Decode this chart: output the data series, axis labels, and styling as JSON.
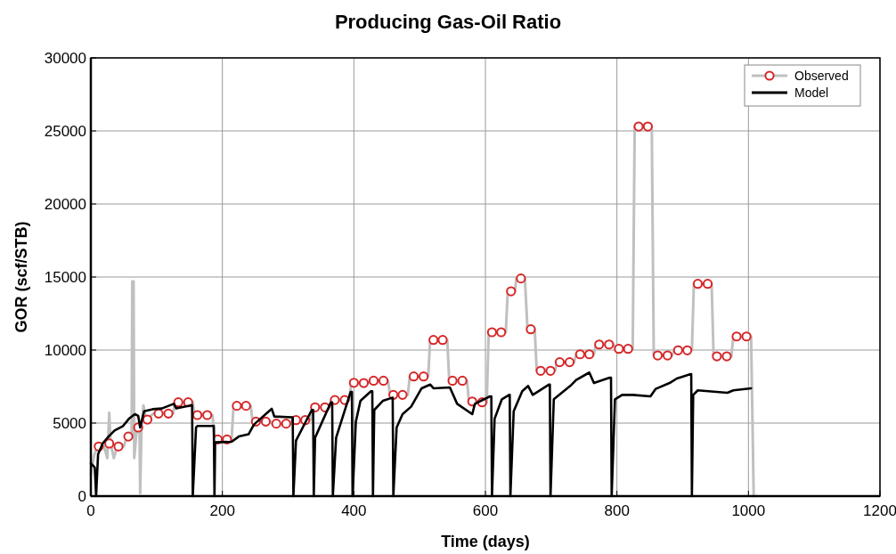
{
  "chart_data": {
    "type": "line",
    "title": "Producing Gas-Oil Ratio",
    "xlabel": "Time (days)",
    "ylabel": "GOR (scf/STB)",
    "xlim": [
      0,
      1200
    ],
    "xticks": [
      0,
      200,
      400,
      600,
      800,
      1000,
      1200
    ],
    "ylim": [
      0,
      30000
    ],
    "yticks": [
      0,
      5000,
      10000,
      15000,
      20000,
      25000,
      30000
    ],
    "grid": true,
    "legend": "top right",
    "series": [
      {
        "color": "#c0c0c0",
        "marker": "none",
        "x": [
          0,
          5,
          10,
          20,
          25,
          28,
          30,
          35,
          40,
          50,
          55,
          62,
          63,
          65,
          66,
          70,
          74,
          75,
          77,
          80,
          84,
          95,
          125,
          128,
          155,
          158,
          185,
          188,
          214,
          217,
          243,
          246,
          273,
          276,
          304,
          307,
          334,
          337,
          363,
          366,
          393,
          396,
          422,
          425,
          452,
          455,
          482,
          485,
          513,
          516,
          542,
          545,
          572,
          575,
          602,
          605,
          631,
          634,
          645,
          647,
          660,
          664,
          675,
          678,
          706,
          709,
          735,
          738,
          765,
          768,
          795,
          798,
          824,
          827,
          853,
          856,
          884,
          887,
          914,
          917,
          944,
          947,
          974,
          977,
          1004,
          1008
        ],
        "values": [
          1500,
          2800,
          3400,
          3400,
          2600,
          5700,
          3600,
          2600,
          3400,
          3400,
          4100,
          4100,
          14700,
          14700,
          2600,
          4700,
          4700,
          200,
          4700,
          6200,
          5200,
          5650,
          5650,
          6420,
          6420,
          5550,
          5550,
          3880,
          3880,
          6180,
          6180,
          5100,
          5100,
          4960,
          4960,
          5200,
          5200,
          6080,
          6080,
          6580,
          6580,
          7740,
          7740,
          7900,
          7900,
          6930,
          6930,
          8190,
          8190,
          10690,
          10690,
          7900,
          7900,
          6480,
          6420,
          11220,
          11220,
          14020,
          14020,
          14900,
          14900,
          11420,
          11420,
          8580,
          8580,
          9170,
          9170,
          9710,
          9710,
          10380,
          10380,
          10080,
          10080,
          25300,
          25300,
          9630,
          9630,
          9980,
          9980,
          14530,
          14530,
          9570,
          9570,
          10930,
          10930,
          0
        ]
      },
      {
        "type": "scatter",
        "name": "Observed",
        "color": "#d62728",
        "marker": "circle",
        "x": [
          12,
          28,
          42,
          57,
          72,
          86,
          103,
          118,
          133,
          148,
          162,
          177,
          193,
          207,
          222,
          236,
          251,
          266,
          282,
          297,
          312,
          326,
          341,
          356,
          371,
          386,
          400,
          415,
          430,
          445,
          460,
          474,
          491,
          506,
          521,
          535,
          550,
          565,
          580,
          595,
          610,
          624,
          639,
          654,
          669,
          684,
          699,
          713,
          728,
          744,
          758,
          773,
          788,
          803,
          817,
          833,
          847,
          862,
          877,
          893,
          907,
          923,
          938,
          952,
          967,
          982,
          997
        ],
        "values": [
          3400,
          3600,
          3400,
          4080,
          4700,
          5240,
          5650,
          5650,
          6420,
          6420,
          5550,
          5550,
          3880,
          3880,
          6180,
          6180,
          5100,
          5100,
          4960,
          4960,
          5200,
          5200,
          6080,
          6080,
          6580,
          6580,
          7760,
          7740,
          7900,
          7900,
          6930,
          6930,
          8190,
          8190,
          10690,
          10690,
          7900,
          7900,
          6480,
          6420,
          11220,
          11220,
          14020,
          14900,
          11420,
          8580,
          8580,
          9170,
          9170,
          9710,
          9710,
          10380,
          10380,
          10080,
          10080,
          25300,
          25300,
          9630,
          9630,
          9980,
          9980,
          14530,
          14530,
          9570,
          9570,
          10930,
          10930
        ]
      },
      {
        "name": "Model",
        "color": "#000000",
        "marker": "none",
        "x": [
          0,
          6,
          8,
          11,
          18,
          27,
          36,
          49,
          58,
          67,
          72,
          75,
          81,
          94,
          108,
          126,
          130,
          153,
          154,
          155,
          160,
          162,
          185,
          187,
          188,
          189,
          214,
          225,
          240,
          248,
          275,
          279,
          306,
          307,
          308,
          312,
          336,
          338,
          339,
          341,
          365,
          367,
          368,
          373,
          395,
          397,
          398,
          403,
          410,
          426,
          428,
          429,
          431,
          444,
          458,
          459,
          460,
          465,
          474,
          487,
          503,
          516,
          521,
          546,
          557,
          580,
          584,
          607,
          609,
          610,
          614,
          625,
          636,
          637,
          638,
          643,
          656,
          665,
          672,
          697,
          698,
          699,
          704,
          729,
          738,
          758,
          765,
          789,
          791,
          792,
          797,
          808,
          824,
          851,
          859,
          880,
          891,
          912,
          913,
          914,
          916,
          923,
          968,
          977,
          1004
        ],
        "values": [
          2250,
          1960,
          0,
          2870,
          3600,
          4080,
          4490,
          4800,
          5300,
          5610,
          5500,
          4700,
          5810,
          5950,
          6000,
          6320,
          6000,
          6220,
          6220,
          0,
          4700,
          4800,
          4800,
          4800,
          0,
          3680,
          3720,
          4080,
          4240,
          4900,
          5980,
          5450,
          5400,
          5400,
          0,
          3800,
          5900,
          5900,
          0,
          4000,
          6420,
          6420,
          0,
          4000,
          7130,
          7130,
          0,
          5100,
          6520,
          7180,
          7180,
          0,
          5900,
          6520,
          6730,
          6730,
          0,
          4700,
          5610,
          6120,
          7380,
          7640,
          7380,
          7440,
          6320,
          5610,
          6320,
          6830,
          6830,
          0,
          5300,
          6630,
          6930,
          6930,
          0,
          5810,
          7180,
          7540,
          6930,
          7640,
          7640,
          0,
          6630,
          7540,
          7950,
          8460,
          7740,
          8110,
          8110,
          0,
          6630,
          6930,
          6930,
          6830,
          7340,
          7740,
          8050,
          8350,
          8350,
          0,
          6930,
          7240,
          7070,
          7240,
          7380
        ]
      }
    ]
  }
}
